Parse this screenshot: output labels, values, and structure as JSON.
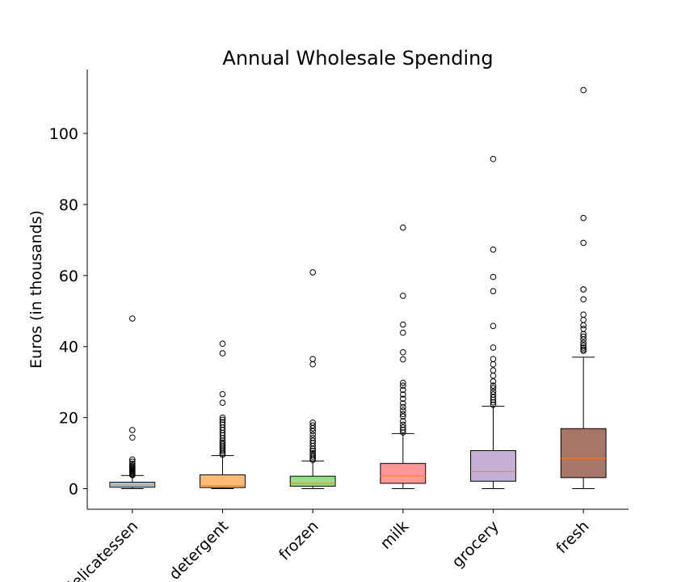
{
  "chart_data": {
    "type": "box",
    "title": "Annual Wholesale Spending",
    "xlabel": "",
    "ylabel": "Euros (in thousands)",
    "ylim": [
      -5.8,
      118
    ],
    "yticks": [
      0,
      20,
      40,
      60,
      80,
      100
    ],
    "grid": false,
    "categories": [
      "delicatessen",
      "detergent",
      "frozen",
      "milk",
      "grocery",
      "fresh"
    ],
    "boxes": [
      {
        "category": "delicatessen",
        "color": "#aec7e8",
        "whisker_low": 0.0,
        "q1": 0.4,
        "median": 1.0,
        "q3": 1.8,
        "whisker_high": 3.7,
        "outliers": [
          3.8,
          4.0,
          4.3,
          4.5,
          4.8,
          5.0,
          5.3,
          5.6,
          5.9,
          6.2,
          6.5,
          7.0,
          7.6,
          8.2,
          14.4,
          16.5,
          47.9
        ]
      },
      {
        "category": "detergent",
        "color": "#ffbb78",
        "whisker_low": 0.0,
        "q1": 0.3,
        "median": 0.8,
        "q3": 3.9,
        "whisker_high": 9.3,
        "outliers": [
          9.6,
          10.0,
          10.5,
          11.0,
          11.5,
          12.0,
          12.5,
          13.0,
          13.5,
          14.2,
          15.0,
          15.7,
          16.5,
          17.2,
          18.0,
          18.7,
          19.4,
          20.0,
          24.2,
          26.6,
          38.1,
          40.8
        ]
      },
      {
        "category": "frozen",
        "color": "#98df8a",
        "whisker_low": 0.0,
        "q1": 0.7,
        "median": 1.5,
        "q3": 3.5,
        "whisker_high": 7.8,
        "outliers": [
          8.1,
          8.5,
          9.0,
          9.5,
          10.0,
          10.6,
          11.2,
          12.0,
          12.8,
          13.5,
          14.3,
          15.2,
          16.2,
          17.0,
          17.8,
          18.6,
          35.0,
          36.5,
          60.9
        ]
      },
      {
        "category": "milk",
        "color": "#ff9896",
        "whisker_low": 0.0,
        "q1": 1.5,
        "median": 3.6,
        "q3": 7.1,
        "whisker_high": 15.5,
        "outliers": [
          15.8,
          16.5,
          17.2,
          18.0,
          19.0,
          20.3,
          21.0,
          22.0,
          23.0,
          24.0,
          25.3,
          26.5,
          27.8,
          29.0,
          29.8,
          36.4,
          38.4,
          43.9,
          46.2,
          54.3,
          73.5
        ]
      },
      {
        "category": "grocery",
        "color": "#c5b0d5",
        "whisker_low": 0.0,
        "q1": 2.1,
        "median": 4.8,
        "q3": 10.7,
        "whisker_high": 23.2,
        "outliers": [
          23.6,
          24.3,
          25.0,
          25.7,
          26.5,
          27.3,
          28.3,
          29.0,
          30.2,
          31.8,
          33.3,
          35.0,
          36.5,
          39.7,
          45.8,
          55.6,
          59.6,
          67.3,
          92.8
        ]
      },
      {
        "category": "fresh",
        "color": "#a87668",
        "whisker_low": 0.0,
        "q1": 3.1,
        "median": 8.5,
        "q3": 16.9,
        "whisker_high": 37.0,
        "outliers": [
          38.8,
          39.2,
          39.7,
          40.3,
          41.0,
          42.0,
          42.8,
          43.5,
          45.0,
          46.0,
          47.5,
          49.0,
          53.3,
          56.1,
          56.1,
          69.2,
          76.2,
          112.2
        ]
      }
    ],
    "median_color": "#ff7f0e",
    "edge_color": "#000000",
    "tick_label_rotation": -45
  }
}
